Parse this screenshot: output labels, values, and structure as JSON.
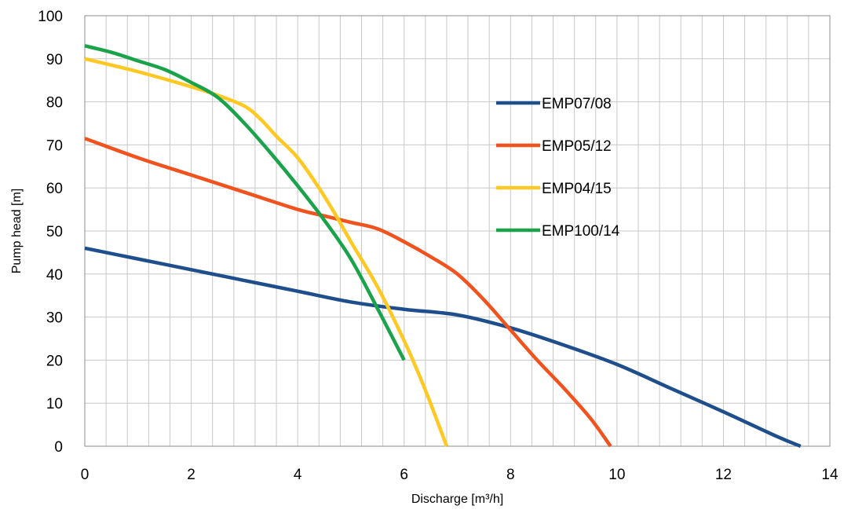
{
  "chart_data": {
    "type": "line",
    "xlabel": "Discharge [m³/h]",
    "ylabel": "Pump head [m]",
    "xlim": [
      0,
      14
    ],
    "ylim": [
      0,
      100
    ],
    "x_ticks": [
      0,
      2,
      4,
      6,
      8,
      10,
      12,
      14
    ],
    "y_ticks": [
      0,
      10,
      20,
      30,
      40,
      50,
      60,
      70,
      80,
      90,
      100
    ],
    "x_minor_step": 0.4,
    "grid": true,
    "legend_position": "right, inside plot",
    "series": [
      {
        "name": "EMP07/08",
        "color": "#1f4e8c",
        "points": [
          [
            0,
            46
          ],
          [
            1,
            43.5
          ],
          [
            2,
            41
          ],
          [
            3,
            38.5
          ],
          [
            4,
            36
          ],
          [
            5,
            33.5
          ],
          [
            6,
            31.8
          ],
          [
            7,
            30.5
          ],
          [
            8,
            27.5
          ],
          [
            9,
            23.5
          ],
          [
            10,
            19
          ],
          [
            11,
            13.5
          ],
          [
            12,
            8
          ],
          [
            13,
            2.3
          ],
          [
            13.45,
            0
          ]
        ]
      },
      {
        "name": "EMP05/12",
        "color": "#f2521d",
        "points": [
          [
            0,
            71.5
          ],
          [
            1,
            67
          ],
          [
            2,
            63
          ],
          [
            3,
            59
          ],
          [
            4,
            55
          ],
          [
            4.5,
            53.5
          ],
          [
            5,
            52
          ],
          [
            5.5,
            50.5
          ],
          [
            6,
            47.5
          ],
          [
            6.5,
            44
          ],
          [
            7,
            40
          ],
          [
            7.5,
            34
          ],
          [
            8,
            27
          ],
          [
            8.5,
            20
          ],
          [
            9,
            13.5
          ],
          [
            9.5,
            6.5
          ],
          [
            9.88,
            0
          ]
        ]
      },
      {
        "name": "EMP04/15",
        "color": "#ffc822",
        "points": [
          [
            0,
            90
          ],
          [
            1,
            87
          ],
          [
            2,
            83.5
          ],
          [
            2.5,
            81.5
          ],
          [
            3,
            79
          ],
          [
            3.3,
            76
          ],
          [
            3.6,
            72
          ],
          [
            4,
            67
          ],
          [
            4.4,
            60
          ],
          [
            4.7,
            54
          ],
          [
            5,
            47.5
          ],
          [
            5.5,
            37
          ],
          [
            6,
            24.5
          ],
          [
            6.4,
            13
          ],
          [
            6.8,
            0
          ]
        ]
      },
      {
        "name": "EMP100/14",
        "color": "#1aa34a",
        "points": [
          [
            0,
            93
          ],
          [
            0.5,
            91.5
          ],
          [
            1,
            89.5
          ],
          [
            1.5,
            87.5
          ],
          [
            2,
            84.5
          ],
          [
            2.5,
            81
          ],
          [
            3,
            75
          ],
          [
            3.5,
            68
          ],
          [
            4,
            60.5
          ],
          [
            4.5,
            52.5
          ],
          [
            5,
            43.5
          ],
          [
            5.5,
            32
          ],
          [
            6,
            20
          ]
        ]
      }
    ]
  }
}
